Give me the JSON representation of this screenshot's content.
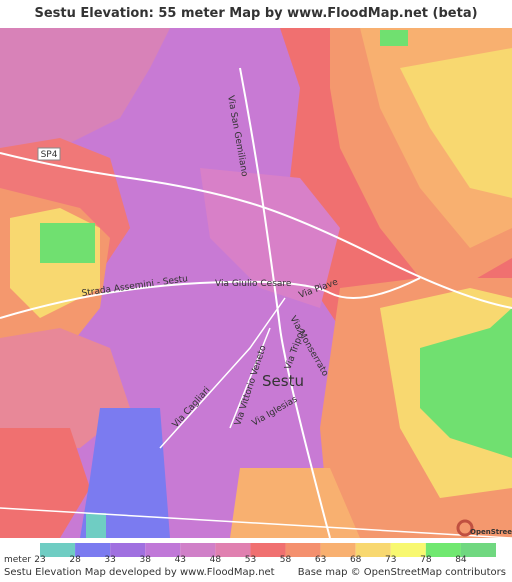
{
  "header": {
    "title": "Sestu Elevation: 55 meter Map by www.FloodMap.net (beta)"
  },
  "map_labels": {
    "sp4": "SP4",
    "via_san_gemiliano": "Via San Gemiliano",
    "strada_assemini": "Strada Assemini - Sestu",
    "via_giulio_cesare": "Via Giulio Cesare",
    "via_piave": "Via Piave",
    "via_monserrato": "Via Monserrato",
    "via_tripoli": "Via Tripoli",
    "via_vittorio_veneto": "Via Vittorio Veneto",
    "via_cagliari": "Via Cagliari",
    "via_iglesias": "Via Iglesias",
    "sestu": "Sestu",
    "osm": "OpenStreetMap"
  },
  "legend": {
    "unit": "meter",
    "stops": [
      "23",
      "28",
      "33",
      "38",
      "43",
      "48",
      "53",
      "58",
      "63",
      "68",
      "73",
      "78",
      "84"
    ],
    "colors": [
      "#6fcdc3",
      "#7b7bf0",
      "#a070e0",
      "#c078d8",
      "#d080c8",
      "#e080b0",
      "#f07070",
      "#f4906e",
      "#f8b070",
      "#f8d870",
      "#f8f870",
      "#70e870",
      "#70d880"
    ]
  },
  "footer": {
    "left": "Sestu Elevation Map developed by www.FloodMap.net",
    "right": "Base map © OpenStreetMap contributors"
  }
}
